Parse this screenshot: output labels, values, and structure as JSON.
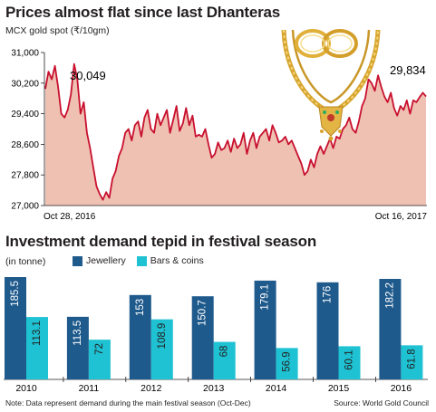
{
  "colors": {
    "price_line": "#c8102e",
    "price_fill": "#efc1b3",
    "jewellery": "#1f5a8c",
    "bars_coins": "#1ec2d2",
    "text": "#231f20"
  },
  "decor": {
    "icon": "gold-necklace-icon"
  },
  "chart_data": [
    {
      "type": "area",
      "title": "Prices almost flat since last Dhanteras",
      "ylabel": "MCX gold spot (₹/10gm)",
      "ylim": [
        27000,
        31000
      ],
      "yticks": [
        "31,000",
        "30,200",
        "29,400",
        "28,600",
        "27,800",
        "27,000"
      ],
      "ytick_values": [
        31000,
        30200,
        29400,
        28600,
        27800,
        27000
      ],
      "xlabels": [
        "Oct 28, 2016",
        "Oct 16, 2017"
      ],
      "annotations": [
        "30,049",
        "29,834"
      ],
      "x": [
        0,
        3,
        6,
        9,
        12,
        15,
        18,
        21,
        24,
        27,
        30,
        33,
        36,
        39,
        42,
        45,
        48,
        51,
        54,
        57,
        60,
        63,
        66,
        69,
        72,
        75,
        78,
        81,
        84,
        87,
        90,
        93,
        96,
        99,
        102,
        105,
        108,
        111,
        114,
        117,
        120,
        123,
        126,
        129,
        132,
        135,
        138,
        141,
        144,
        147,
        150,
        153,
        156,
        159,
        162,
        165,
        168,
        171,
        174,
        177,
        180,
        183,
        186,
        189,
        192,
        195,
        198,
        201,
        204,
        207,
        210,
        213,
        216,
        219,
        222,
        225,
        228,
        231,
        234,
        237,
        240,
        243,
        246,
        249,
        252,
        255,
        258,
        261,
        264,
        267,
        270,
        273,
        276,
        279,
        282,
        285,
        288,
        291,
        294,
        297,
        300,
        303,
        306,
        309,
        312,
        315,
        318,
        321,
        324,
        327,
        330,
        333,
        336,
        339,
        342,
        345,
        348,
        351,
        354,
        357
      ],
      "values": [
        30049,
        30500,
        30300,
        30650,
        30100,
        29400,
        29300,
        29500,
        29900,
        30700,
        30300,
        29400,
        29700,
        28900,
        28500,
        28000,
        27500,
        27300,
        27150,
        27350,
        27200,
        27700,
        27900,
        28300,
        28500,
        28900,
        29000,
        28700,
        29100,
        29200,
        28800,
        29300,
        29500,
        29000,
        28900,
        29400,
        29100,
        29300,
        29500,
        28900,
        29250,
        29600,
        28950,
        29150,
        29550,
        29100,
        29350,
        28800,
        28850,
        28800,
        29000,
        28600,
        28250,
        28350,
        28650,
        28450,
        28500,
        28700,
        28400,
        28750,
        28500,
        28600,
        28900,
        28350,
        28700,
        28900,
        28500,
        28800,
        28900,
        29000,
        28700,
        29100,
        28900,
        28650,
        28700,
        28800,
        28600,
        28700,
        28500,
        28300,
        28100,
        27800,
        27900,
        28200,
        28000,
        28350,
        28550,
        28350,
        28550,
        28750,
        28500,
        28800,
        28750,
        29000,
        29100,
        29300,
        29000,
        28900,
        29200,
        29600,
        29800,
        30300,
        30200,
        30000,
        30400,
        30100,
        29850,
        29700,
        29950,
        29550,
        29350,
        29600,
        29500,
        29750,
        29400,
        29750,
        29700,
        29834,
        29950,
        29850
      ],
      "grid": false,
      "legend": "none"
    },
    {
      "type": "bar",
      "title": "Investment demand tepid in festival season",
      "ylabel": "(in tonne)",
      "categories": [
        "2010",
        "2011",
        "2012",
        "2013",
        "2014",
        "2015",
        "2016"
      ],
      "series": [
        {
          "name": "Jewellery",
          "values": [
            185.5,
            113.5,
            153,
            150.7,
            179.1,
            176,
            182.2
          ]
        },
        {
          "name": "Bars & coins",
          "values": [
            113.1,
            72,
            108.9,
            68,
            56.9,
            60.1,
            61.8
          ]
        }
      ],
      "value_labels": [
        [
          "185.5",
          "113.5",
          "153",
          "150.7",
          "179.1",
          "176",
          "182.2"
        ],
        [
          "113.1",
          "72",
          "108.9",
          "68",
          "56.9",
          "60.1",
          "61.8"
        ]
      ],
      "ylim": [
        0,
        200
      ],
      "legend": "top",
      "grid": false
    }
  ],
  "footer": {
    "note": "Note: Data represent demand during the main festival season (Oct-Dec)",
    "source": "Source: World Gold Council"
  }
}
